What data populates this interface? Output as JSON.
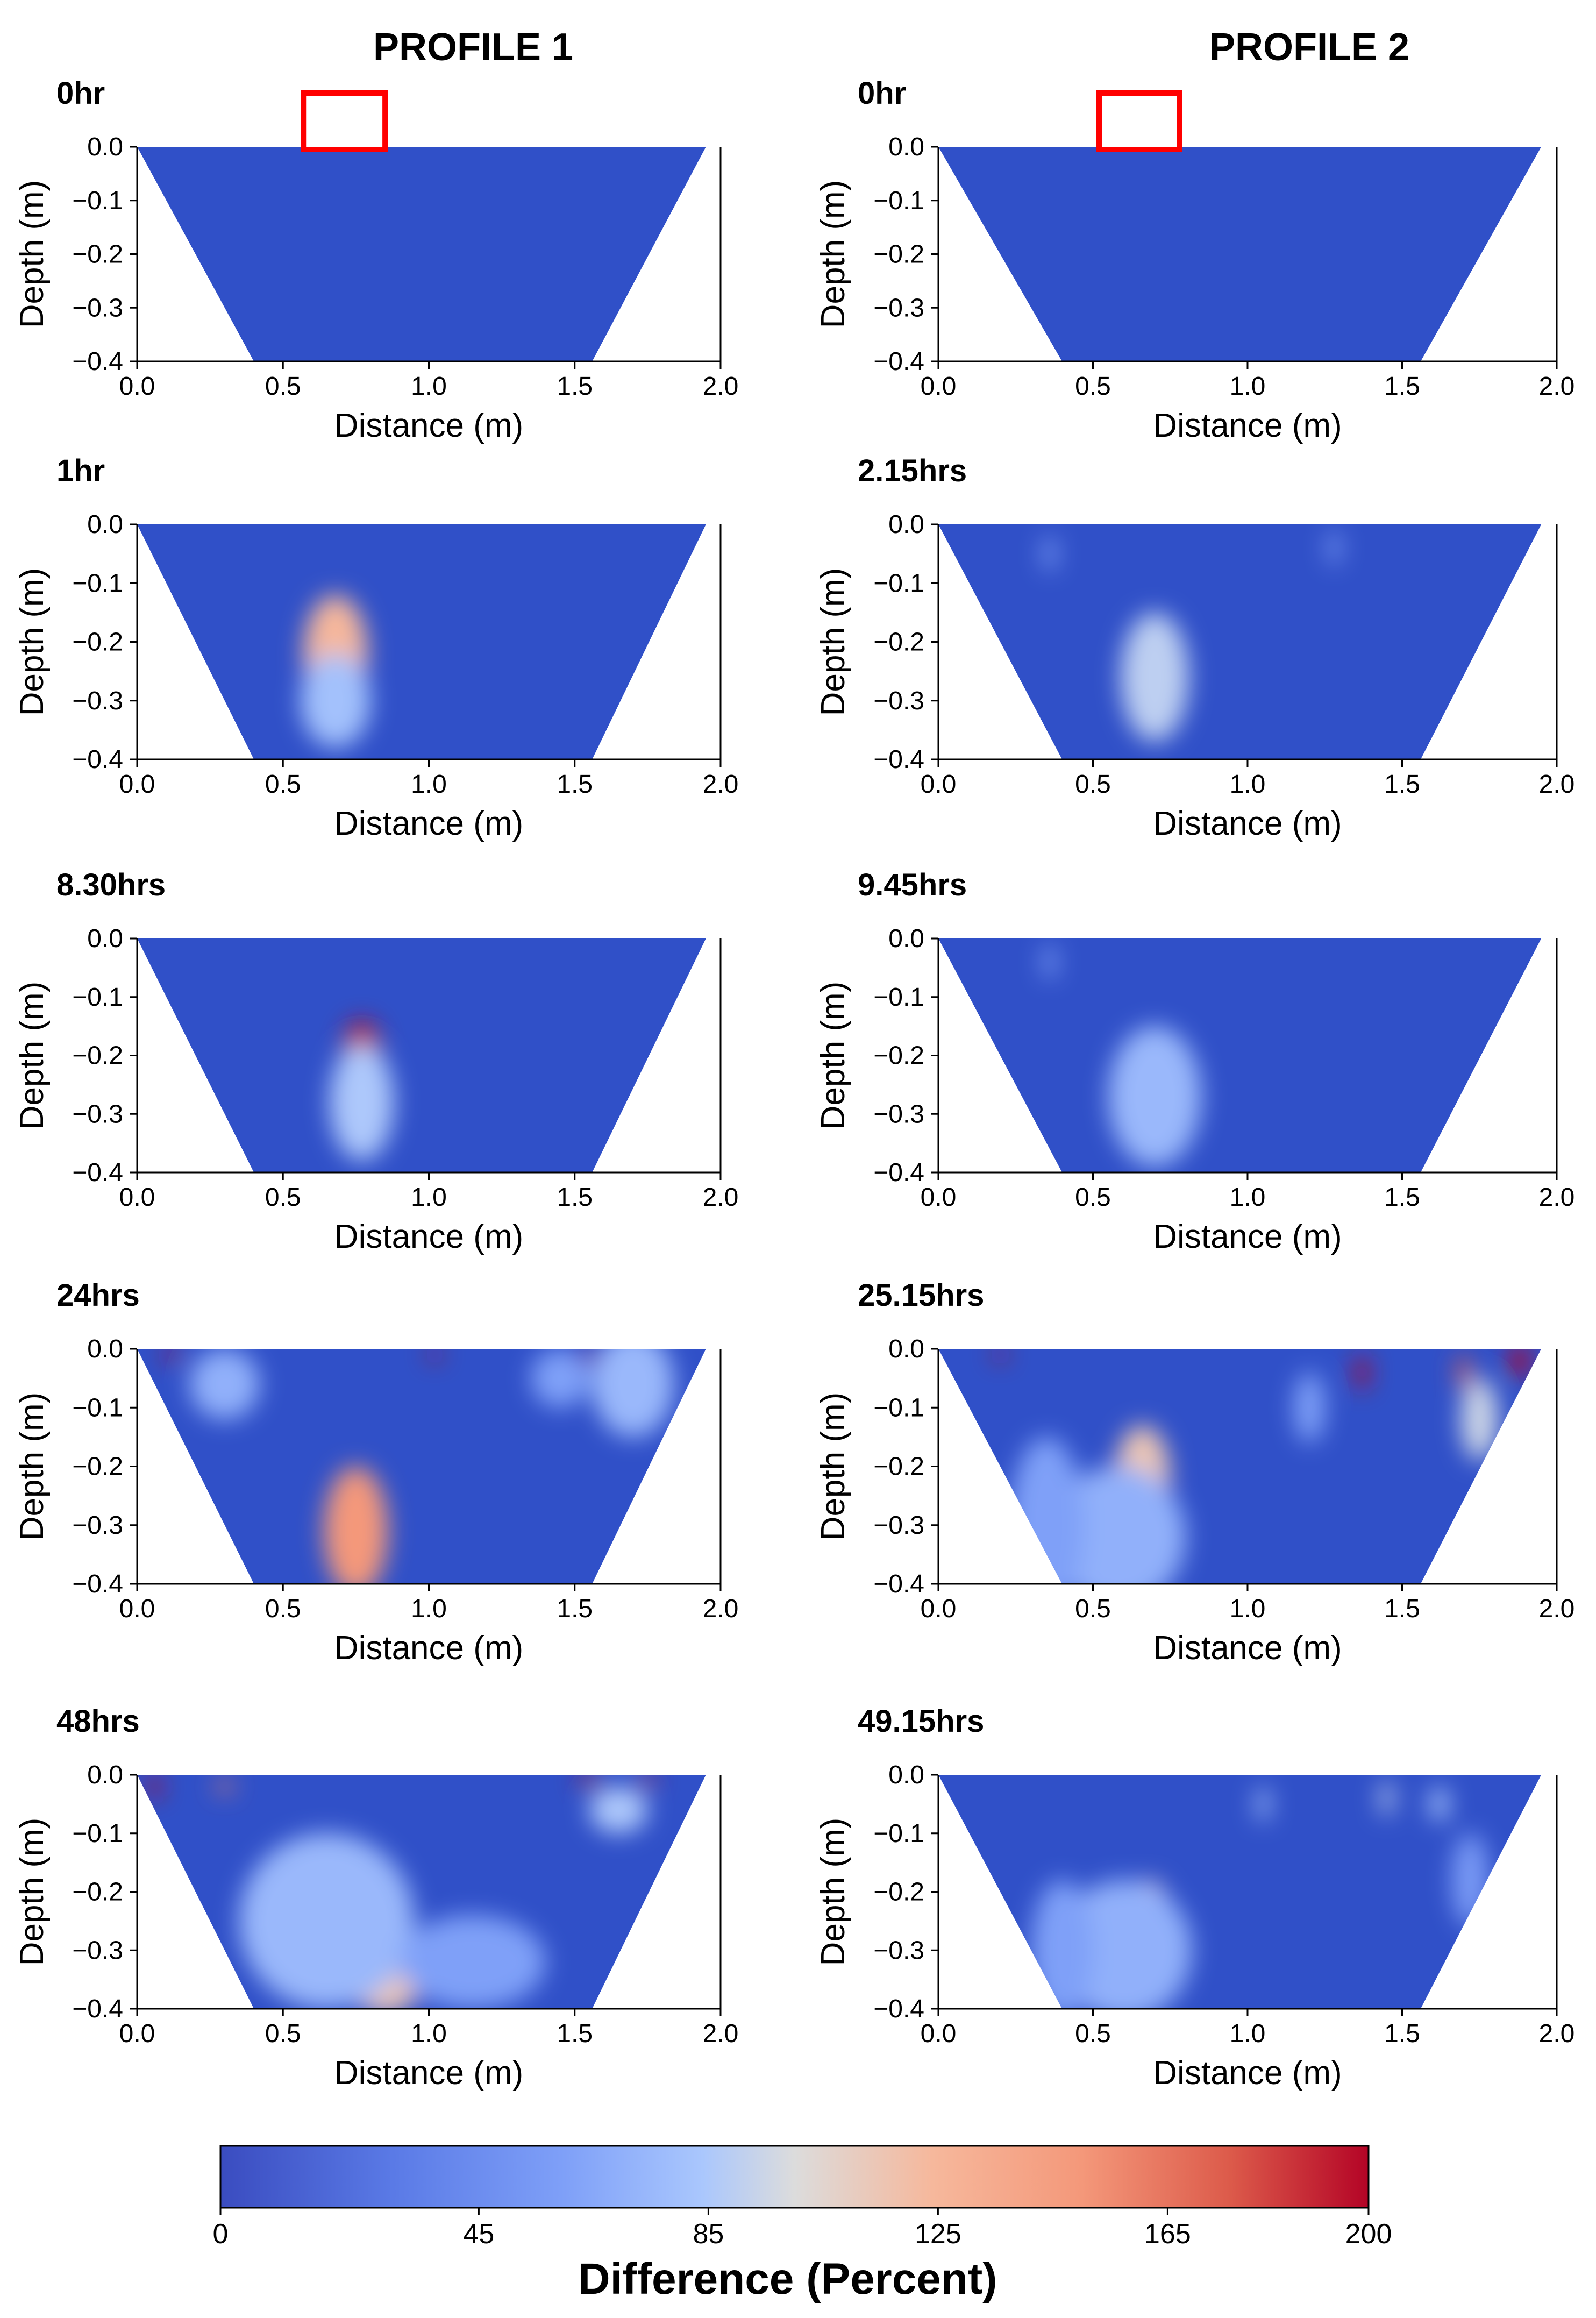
{
  "columns": [
    {
      "title": "PROFILE 1"
    },
    {
      "title": "PROFILE 2"
    }
  ],
  "colors": {
    "cold": "#3050c8",
    "mid": "#dcdcdc",
    "hot": "#c8001e",
    "marker": "#ff0000"
  },
  "chart_data": [
    {
      "type": "heatmap",
      "profile": "PROFILE 1",
      "time_label": "0hr",
      "xlabel": "Distance (m)",
      "ylabel": "Depth (m)",
      "xlim": [
        0.0,
        2.0
      ],
      "ylim": [
        -0.4,
        0.0
      ],
      "x_ticks": [
        "0.0",
        "0.5",
        "1.0",
        "1.5",
        "2.0"
      ],
      "y_ticks": [
        "0.0",
        "−0.1",
        "−0.2",
        "−0.3",
        "−0.4"
      ],
      "marker_box": {
        "x0": 0.57,
        "x1": 0.85,
        "label": ""
      },
      "anomalies": []
    },
    {
      "type": "heatmap",
      "profile": "PROFILE 2",
      "time_label": "0hr",
      "xlabel": "Distance (m)",
      "ylabel": "Depth (m)",
      "xlim": [
        0.0,
        2.0
      ],
      "ylim": [
        -0.4,
        0.0
      ],
      "x_ticks": [
        "0.0",
        "0.5",
        "1.0",
        "1.5",
        "2.0"
      ],
      "y_ticks": [
        "0.0",
        "−0.1",
        "−0.2",
        "−0.3",
        "−0.4"
      ],
      "marker_box": {
        "x0": 0.52,
        "x1": 0.78,
        "label": ""
      },
      "anomalies": []
    },
    {
      "type": "heatmap",
      "profile": "PROFILE 1",
      "time_label": "1hr",
      "xlabel": "Distance (m)",
      "ylabel": "Depth (m)",
      "xlim": [
        0.0,
        2.0
      ],
      "ylim": [
        -0.4,
        0.0
      ],
      "x_ticks": [
        "0.0",
        "0.5",
        "1.0",
        "1.5",
        "2.0"
      ],
      "y_ticks": [
        "0.0",
        "−0.1",
        "−0.2",
        "−0.3",
        "−0.4"
      ],
      "anomalies": [
        {
          "x": 0.68,
          "y": -0.22,
          "sx": 0.11,
          "sy": 0.1,
          "value": 125
        },
        {
          "x": 0.68,
          "y": -0.3,
          "sx": 0.12,
          "sy": 0.08,
          "value": 80
        }
      ]
    },
    {
      "type": "heatmap",
      "profile": "PROFILE 2",
      "time_label": "2.15hrs",
      "xlabel": "Distance (m)",
      "ylabel": "Depth (m)",
      "xlim": [
        0.0,
        2.0
      ],
      "ylim": [
        -0.4,
        0.0
      ],
      "x_ticks": [
        "0.0",
        "0.5",
        "1.0",
        "1.5",
        "2.0"
      ],
      "y_ticks": [
        "0.0",
        "−0.1",
        "−0.2",
        "−0.3",
        "−0.4"
      ],
      "anomalies": [
        {
          "x": 0.7,
          "y": -0.26,
          "sx": 0.11,
          "sy": 0.11,
          "value": 90
        },
        {
          "x": 0.36,
          "y": -0.05,
          "sx": 0.02,
          "sy": 0.03,
          "value": 60
        },
        {
          "x": 1.28,
          "y": -0.04,
          "sx": 0.02,
          "sy": 0.03,
          "value": 55
        }
      ]
    },
    {
      "type": "heatmap",
      "profile": "PROFILE 1",
      "time_label": "8.30hrs",
      "xlabel": "Distance (m)",
      "ylabel": "Depth (m)",
      "xlim": [
        0.0,
        2.0
      ],
      "ylim": [
        -0.4,
        0.0
      ],
      "x_ticks": [
        "0.0",
        "0.5",
        "1.0",
        "1.5",
        "2.0"
      ],
      "y_ticks": [
        "0.0",
        "−0.1",
        "−0.2",
        "−0.3",
        "−0.4"
      ],
      "anomalies": [
        {
          "x": 0.77,
          "y": -0.21,
          "sx": 0.07,
          "sy": 0.07,
          "value": 195
        },
        {
          "x": 0.77,
          "y": -0.28,
          "sx": 0.11,
          "sy": 0.1,
          "value": 85
        }
      ]
    },
    {
      "type": "heatmap",
      "profile": "PROFILE 2",
      "time_label": "9.45hrs",
      "xlabel": "Distance (m)",
      "ylabel": "Depth (m)",
      "xlim": [
        0.0,
        2.0
      ],
      "ylim": [
        -0.4,
        0.0
      ],
      "x_ticks": [
        "0.0",
        "0.5",
        "1.0",
        "1.5",
        "2.0"
      ],
      "y_ticks": [
        "0.0",
        "−0.1",
        "−0.2",
        "−0.3",
        "−0.4"
      ],
      "anomalies": [
        {
          "x": 0.7,
          "y": -0.27,
          "sx": 0.15,
          "sy": 0.12,
          "value": 75
        },
        {
          "x": 0.36,
          "y": -0.04,
          "sx": 0.02,
          "sy": 0.03,
          "value": 60
        }
      ]
    },
    {
      "type": "heatmap",
      "profile": "PROFILE 1",
      "time_label": "24hrs",
      "xlabel": "Distance (m)",
      "ylabel": "Depth (m)",
      "xlim": [
        0.0,
        2.0
      ],
      "ylim": [
        -0.4,
        0.0
      ],
      "x_ticks": [
        "0.0",
        "0.5",
        "1.0",
        "1.5",
        "2.0"
      ],
      "y_ticks": [
        "0.0",
        "−0.1",
        "−0.2",
        "−0.3",
        "−0.4"
      ],
      "anomalies": [
        {
          "x": 0.75,
          "y": -0.31,
          "sx": 0.11,
          "sy": 0.11,
          "value": 150
        },
        {
          "x": 0.3,
          "y": -0.06,
          "sx": 0.12,
          "sy": 0.06,
          "value": 70
        },
        {
          "x": 0.12,
          "y": -0.01,
          "sx": 0.03,
          "sy": 0.01,
          "value": 200
        },
        {
          "x": 1.02,
          "y": -0.01,
          "sx": 0.02,
          "sy": 0.01,
          "value": 200
        },
        {
          "x": 1.55,
          "y": -0.01,
          "sx": 0.02,
          "sy": 0.01,
          "value": 200
        },
        {
          "x": 1.7,
          "y": -0.06,
          "sx": 0.14,
          "sy": 0.09,
          "value": 75
        },
        {
          "x": 1.45,
          "y": -0.05,
          "sx": 0.1,
          "sy": 0.05,
          "value": 60
        }
      ]
    },
    {
      "type": "heatmap",
      "profile": "PROFILE 2",
      "time_label": "25.15hrs",
      "xlabel": "Distance (m)",
      "ylabel": "Depth (m)",
      "xlim": [
        0.0,
        2.0
      ],
      "ylim": [
        -0.4,
        0.0
      ],
      "x_ticks": [
        "0.0",
        "0.5",
        "1.0",
        "1.5",
        "2.0"
      ],
      "y_ticks": [
        "0.0",
        "−0.1",
        "−0.2",
        "−0.3",
        "−0.4"
      ],
      "anomalies": [
        {
          "x": 0.66,
          "y": -0.22,
          "sx": 0.09,
          "sy": 0.09,
          "value": 115
        },
        {
          "x": 0.58,
          "y": -0.32,
          "sx": 0.22,
          "sy": 0.12,
          "value": 70
        },
        {
          "x": 0.35,
          "y": -0.3,
          "sx": 0.12,
          "sy": 0.15,
          "value": 60
        },
        {
          "x": 1.37,
          "y": -0.04,
          "sx": 0.02,
          "sy": 0.03,
          "value": 200
        },
        {
          "x": 1.7,
          "y": -0.04,
          "sx": 0.02,
          "sy": 0.03,
          "value": 175
        },
        {
          "x": 1.88,
          "y": -0.02,
          "sx": 0.03,
          "sy": 0.03,
          "value": 200
        },
        {
          "x": 0.2,
          "y": -0.01,
          "sx": 0.02,
          "sy": 0.01,
          "value": 200
        },
        {
          "x": 1.75,
          "y": -0.12,
          "sx": 0.06,
          "sy": 0.07,
          "value": 95
        },
        {
          "x": 1.2,
          "y": -0.1,
          "sx": 0.05,
          "sy": 0.06,
          "value": 60
        }
      ]
    },
    {
      "type": "heatmap",
      "profile": "PROFILE 1",
      "time_label": "48hrs",
      "xlabel": "Distance (m)",
      "ylabel": "Depth (m)",
      "xlim": [
        0.0,
        2.0
      ],
      "ylim": [
        -0.4,
        0.0
      ],
      "x_ticks": [
        "0.0",
        "0.5",
        "1.0",
        "1.5",
        "2.0"
      ],
      "y_ticks": [
        "0.0",
        "−0.1",
        "−0.2",
        "−0.3",
        "−0.4"
      ],
      "anomalies": [
        {
          "x": 0.85,
          "y": -0.34,
          "sx": 0.13,
          "sy": 0.07,
          "value": 115
        },
        {
          "x": 0.65,
          "y": -0.25,
          "sx": 0.3,
          "sy": 0.15,
          "value": 75
        },
        {
          "x": 1.15,
          "y": -0.32,
          "sx": 0.25,
          "sy": 0.08,
          "value": 60
        },
        {
          "x": 0.06,
          "y": -0.02,
          "sx": 0.02,
          "sy": 0.02,
          "value": 200
        },
        {
          "x": 1.55,
          "y": -0.01,
          "sx": 0.04,
          "sy": 0.01,
          "value": 200
        },
        {
          "x": 1.75,
          "y": -0.01,
          "sx": 0.03,
          "sy": 0.01,
          "value": 190
        },
        {
          "x": 0.3,
          "y": -0.02,
          "sx": 0.03,
          "sy": 0.01,
          "value": 160
        },
        {
          "x": 1.65,
          "y": -0.06,
          "sx": 0.1,
          "sy": 0.04,
          "value": 85
        }
      ]
    },
    {
      "type": "heatmap",
      "profile": "PROFILE 2",
      "time_label": "49.15hrs",
      "xlabel": "Distance (m)",
      "ylabel": "Depth (m)",
      "xlim": [
        0.0,
        2.0
      ],
      "ylim": [
        -0.4,
        0.0
      ],
      "x_ticks": [
        "0.0",
        "0.5",
        "1.0",
        "1.5",
        "2.0"
      ],
      "y_ticks": [
        "0.0",
        "−0.1",
        "−0.2",
        "−0.3",
        "−0.4"
      ],
      "anomalies": [
        {
          "x": 0.68,
          "y": -0.26,
          "sx": 0.08,
          "sy": 0.08,
          "value": 110
        },
        {
          "x": 0.6,
          "y": -0.3,
          "sx": 0.22,
          "sy": 0.12,
          "value": 70
        },
        {
          "x": 0.4,
          "y": -0.3,
          "sx": 0.1,
          "sy": 0.12,
          "value": 60
        },
        {
          "x": 1.05,
          "y": -0.05,
          "sx": 0.02,
          "sy": 0.03,
          "value": 80
        },
        {
          "x": 1.45,
          "y": -0.04,
          "sx": 0.02,
          "sy": 0.03,
          "value": 90
        },
        {
          "x": 1.62,
          "y": -0.05,
          "sx": 0.03,
          "sy": 0.03,
          "value": 80
        },
        {
          "x": 1.72,
          "y": -0.18,
          "sx": 0.06,
          "sy": 0.08,
          "value": 55
        }
      ]
    }
  ],
  "colorbar": {
    "label": "Difference (Percent)",
    "min": 0,
    "max": 200,
    "ticks": [
      "0",
      "45",
      "85",
      "125",
      "165",
      "200"
    ],
    "tick_values": [
      0,
      45,
      85,
      125,
      165,
      200
    ]
  }
}
